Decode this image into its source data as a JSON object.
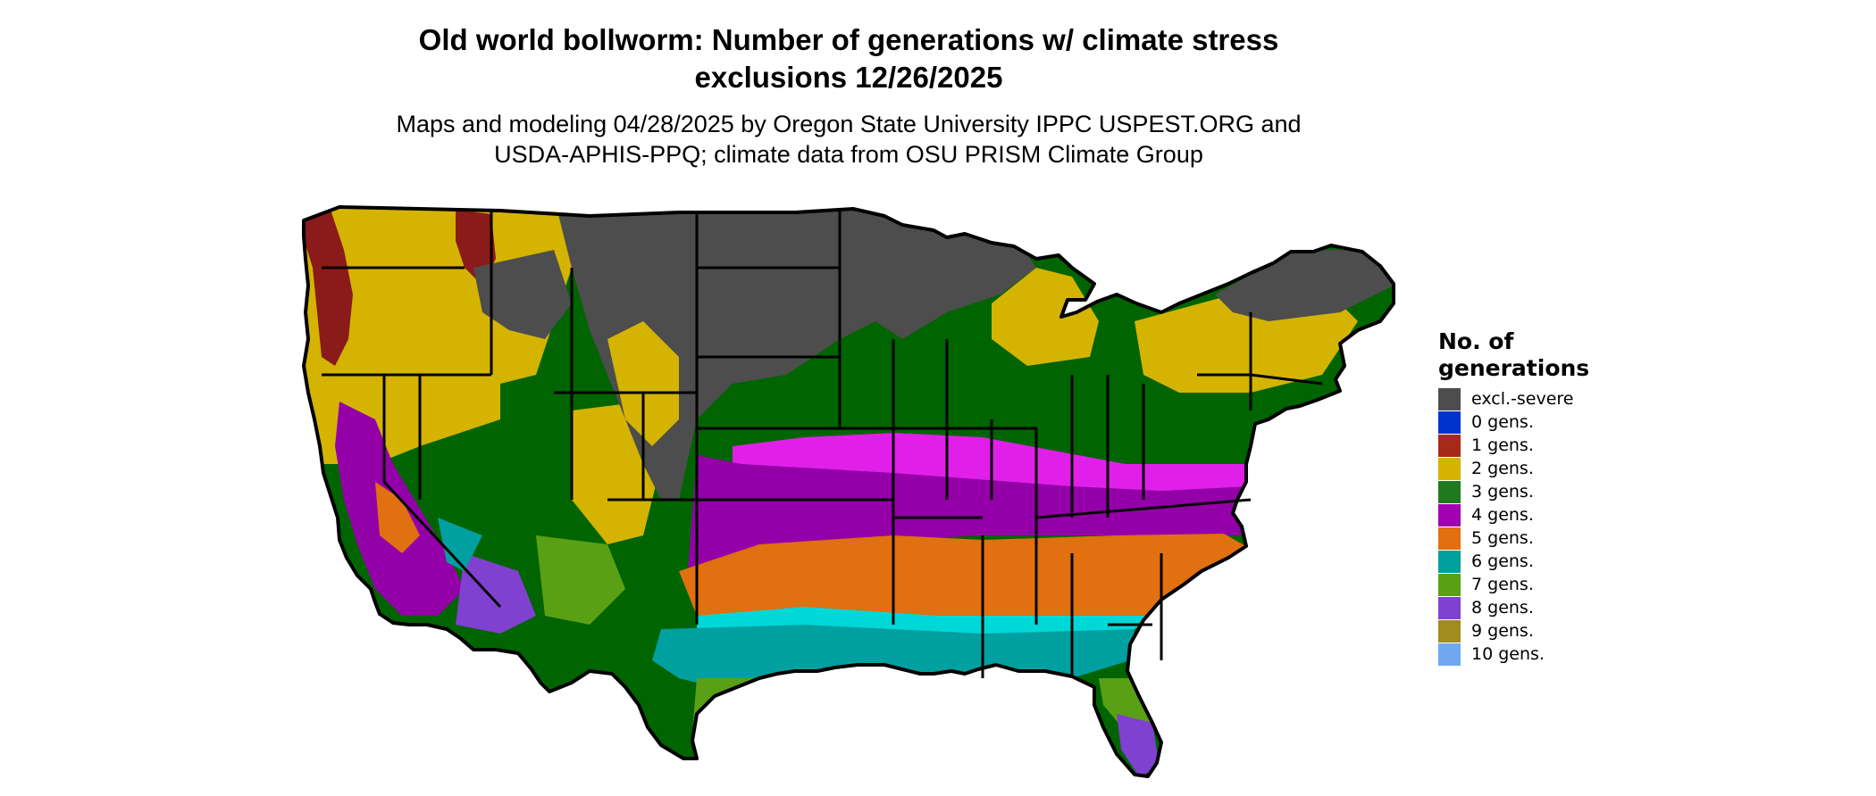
{
  "title": {
    "line1": "Old world bollworm: Number of generations w/ climate stress",
    "line2": "exclusions 12/26/2025"
  },
  "subtitle": {
    "line1": "Maps and modeling 04/28/2025 by Oregon State University IPPC USPEST.ORG and",
    "line2": "USDA-APHIS-PPQ; climate data from OSU PRISM Climate Group"
  },
  "legend": {
    "title_line1": "No. of",
    "title_line2": "generations",
    "items": [
      {
        "label": "excl.-severe",
        "color": "#4d4d4d"
      },
      {
        "label": "0 gens.",
        "color": "#0033cc"
      },
      {
        "label": "1 gens.",
        "color": "#a52a1a"
      },
      {
        "label": "2 gens.",
        "color": "#d4b400"
      },
      {
        "label": "3 gens.",
        "color": "#1f7a1f"
      },
      {
        "label": "4 gens.",
        "color": "#a000b0"
      },
      {
        "label": "5 gens.",
        "color": "#e07010"
      },
      {
        "label": "6 gens.",
        "color": "#00a0a0"
      },
      {
        "label": "7 gens.",
        "color": "#5aa014"
      },
      {
        "label": "8 gens.",
        "color": "#8040d0"
      },
      {
        "label": "9 gens.",
        "color": "#a08c20"
      },
      {
        "label": "10 gens.",
        "color": "#70a8f0"
      }
    ]
  },
  "map": {
    "region": "conterminous-us",
    "colors": {
      "excl": "#4d4d4d",
      "g1": "#8b1a1a",
      "g2": "#d4b400",
      "g3": "#006400",
      "g4": "#9400a8",
      "g4hi": "#e020e8",
      "g5": "#e07010",
      "g6": "#00a0a0",
      "g6hi": "#00d8d8",
      "g7": "#5aa014",
      "g8": "#8040d0",
      "g3lt": "#6cc06c",
      "border": "#000000"
    }
  }
}
